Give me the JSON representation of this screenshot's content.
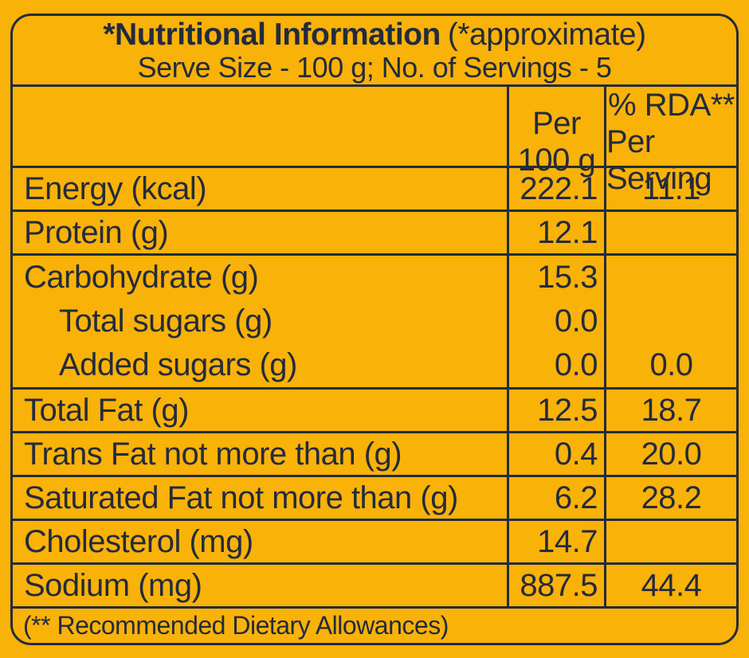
{
  "colors": {
    "background": "#F9B208",
    "ink": "#232B3D"
  },
  "title": {
    "main": "*Nutritional Information",
    "note": "(*approximate)",
    "serving": "Serve Size - 100 g; No. of Servings - 5"
  },
  "header": {
    "per100_line1": "Per",
    "per100_line2": "100 g",
    "rda_line1": "% RDA**",
    "rda_line2": "Per Serving"
  },
  "rows": [
    {
      "label": "Energy (kcal)",
      "per100": "222.1",
      "rda": "11.1"
    },
    {
      "label": "Protein (g)",
      "per100": "12.1",
      "rda": ""
    },
    {
      "label": "Carbohydrate (g)",
      "per100": "15.3",
      "rda": ""
    },
    {
      "label": "Total sugars (g)",
      "per100": "0.0",
      "rda": ""
    },
    {
      "label": "Added sugars (g)",
      "per100": "0.0",
      "rda": "0.0"
    },
    {
      "label": "Total Fat (g)",
      "per100": "12.5",
      "rda": "18.7"
    },
    {
      "label": "Trans Fat not more than (g)",
      "per100": "0.4",
      "rda": "20.0"
    },
    {
      "label": "Saturated Fat not more than (g)",
      "per100": "6.2",
      "rda": "28.2"
    },
    {
      "label": "Cholesterol (mg)",
      "per100": "14.7",
      "rda": ""
    },
    {
      "label": "Sodium (mg)",
      "per100": "887.5",
      "rda": "44.4"
    }
  ],
  "footer": "(** Recommended Dietary Allowances)"
}
